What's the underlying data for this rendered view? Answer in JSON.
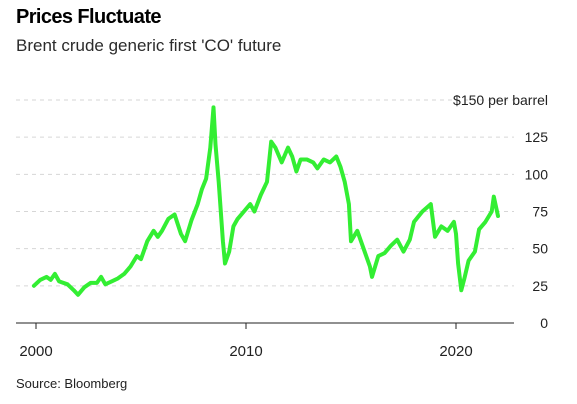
{
  "header": {
    "title": "Prices Fluctuate",
    "subtitle": "Brent crude generic first 'CO' future"
  },
  "footer": {
    "source": "Source: Bloomberg"
  },
  "colors": {
    "line": "#33ee33",
    "grid": "#d6d6d6",
    "axis": "#222222",
    "text": "#222222"
  },
  "chart_data": {
    "type": "line",
    "title": "Prices Fluctuate",
    "subtitle": "Brent crude generic first 'CO' future",
    "xlabel": "",
    "ylabel": "",
    "ylim": [
      0,
      150
    ],
    "xlim": [
      2000,
      2022.9
    ],
    "grid": true,
    "legend": "none",
    "y_ticks": [
      {
        "value": 0,
        "label": "0"
      },
      {
        "value": 25,
        "label": "25"
      },
      {
        "value": 50,
        "label": "50"
      },
      {
        "value": 75,
        "label": "75"
      },
      {
        "value": 100,
        "label": "100"
      },
      {
        "value": 125,
        "label": "125"
      },
      {
        "value": 150,
        "label": "$150 per barrel"
      }
    ],
    "x_ticks": [
      {
        "value": 2000,
        "label": "2000"
      },
      {
        "value": 2010,
        "label": "2010"
      },
      {
        "value": 2020,
        "label": "2020"
      }
    ],
    "series": [
      {
        "x": [
          1999.9,
          2000.2,
          2000.5,
          2000.7,
          2000.9,
          2001.1,
          2001.5,
          2001.8,
          2002.0,
          2002.3,
          2002.6,
          2002.9,
          2003.1,
          2003.3,
          2003.6,
          2003.9,
          2004.2,
          2004.5,
          2004.8,
          2005.0,
          2005.3,
          2005.6,
          2005.8,
          2006.0,
          2006.3,
          2006.6,
          2006.9,
          2007.1,
          2007.4,
          2007.7,
          2007.9,
          2008.1,
          2008.3,
          2008.45,
          2008.55,
          2008.7,
          2008.9,
          2009.0,
          2009.2,
          2009.4,
          2009.6,
          2009.9,
          2010.2,
          2010.4,
          2010.7,
          2011.0,
          2011.2,
          2011.4,
          2011.7,
          2012.0,
          2012.2,
          2012.4,
          2012.6,
          2012.9,
          2013.2,
          2013.4,
          2013.7,
          2014.0,
          2014.3,
          2014.5,
          2014.7,
          2014.9,
          2015.0,
          2015.3,
          2015.6,
          2015.9,
          2016.0,
          2016.3,
          2016.6,
          2016.9,
          2017.2,
          2017.5,
          2017.8,
          2018.0,
          2018.4,
          2018.8,
          2019.0,
          2019.3,
          2019.6,
          2019.9,
          2020.0,
          2020.1,
          2020.25,
          2020.4,
          2020.6,
          2020.9,
          2021.1,
          2021.4,
          2021.7,
          2021.8,
          2022.0
        ],
        "values": [
          25,
          29,
          31,
          29,
          33,
          28,
          26,
          22,
          19,
          24,
          27,
          27,
          31,
          26,
          28,
          30,
          33,
          38,
          45,
          43,
          55,
          62,
          58,
          62,
          70,
          73,
          60,
          55,
          69,
          80,
          90,
          97,
          118,
          145,
          120,
          95,
          55,
          40,
          48,
          65,
          70,
          75,
          80,
          75,
          86,
          95,
          122,
          118,
          108,
          118,
          112,
          102,
          110,
          110,
          108,
          104,
          110,
          108,
          112,
          105,
          95,
          80,
          55,
          62,
          50,
          38,
          31,
          45,
          47,
          52,
          56,
          48,
          56,
          68,
          75,
          80,
          58,
          65,
          62,
          68,
          60,
          40,
          22,
          30,
          42,
          48,
          63,
          68,
          75,
          85,
          72
        ]
      }
    ]
  }
}
